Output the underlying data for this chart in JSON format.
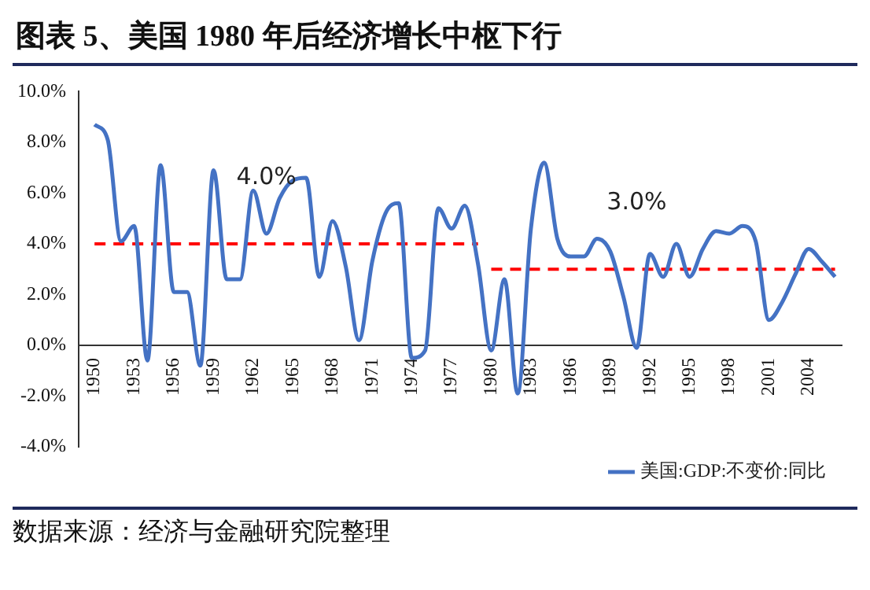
{
  "chart_data": {
    "type": "line",
    "title": "图表 5、美国 1980 年后经济增长中枢下行",
    "x": [
      1950,
      1951,
      1952,
      1953,
      1954,
      1955,
      1956,
      1957,
      1958,
      1959,
      1960,
      1961,
      1962,
      1963,
      1964,
      1965,
      1966,
      1967,
      1968,
      1969,
      1970,
      1971,
      1972,
      1973,
      1974,
      1975,
      1976,
      1977,
      1978,
      1979,
      1980,
      1981,
      1982,
      1983,
      1984,
      1985,
      1986,
      1987,
      1988,
      1989,
      1990,
      1991,
      1992,
      1993,
      1994,
      1995,
      1996,
      1997,
      1998,
      1999,
      2000,
      2001,
      2002,
      2003,
      2004,
      2005,
      2006
    ],
    "series": [
      {
        "name": "美国:GDP:不变价:同比",
        "color": "#4472c4",
        "values": [
          8.7,
          8.1,
          4.1,
          4.7,
          -0.6,
          7.1,
          2.1,
          2.1,
          -0.8,
          6.9,
          2.6,
          2.6,
          6.1,
          4.4,
          5.8,
          6.5,
          6.6,
          2.7,
          4.9,
          3.1,
          0.2,
          3.3,
          5.2,
          5.6,
          -0.5,
          -0.2,
          5.4,
          4.6,
          5.5,
          3.2,
          -0.2,
          2.6,
          -1.9,
          4.6,
          7.2,
          4.2,
          3.5,
          3.5,
          4.2,
          3.7,
          1.9,
          -0.1,
          3.6,
          2.7,
          4.0,
          2.7,
          3.8,
          4.5,
          4.4,
          4.7,
          4.1,
          1.0,
          1.7,
          2.8,
          3.8,
          3.3,
          2.7
        ]
      },
      {
        "type": "line",
        "x": [
          1950,
          1979
        ],
        "values": [
          4,
          4
        ],
        "color": "#ff0000",
        "line_style": "dashed"
      },
      {
        "type": "line",
        "x": [
          1980,
          2006
        ],
        "values": [
          3,
          3
        ],
        "color": "#ff0000",
        "line_style": "dashed"
      }
    ],
    "annotations": [
      {
        "text": "4.0%",
        "x": 1963,
        "y": 4
      },
      {
        "text": "3.0%",
        "x": 1991,
        "y": 3
      },
      "数据来源：经济与金融研究院整理"
    ],
    "xlim": [
      1948.8,
      2006.5
    ],
    "xticks": [
      1950,
      1953,
      1956,
      1959,
      1962,
      1965,
      1968,
      1971,
      1974,
      1977,
      1980,
      1983,
      1986,
      1989,
      1992,
      1995,
      1998,
      2001,
      2004
    ],
    "ylim": [
      -4,
      10
    ],
    "yticks": [
      {
        "value": -4,
        "label": "-4.0%"
      },
      {
        "value": -2,
        "label": "-2.0%"
      },
      {
        "value": 0,
        "label": "0.0%"
      },
      {
        "value": 2,
        "label": "2.0%"
      },
      {
        "value": 4,
        "label": "4.0%"
      },
      {
        "value": 6,
        "label": "6.0%"
      },
      {
        "value": 8,
        "label": "8.0%"
      },
      {
        "value": 10,
        "label": "10.0%"
      }
    ],
    "grid": false,
    "legend": "bottom",
    "marker": "none",
    "line_style": "solid"
  }
}
